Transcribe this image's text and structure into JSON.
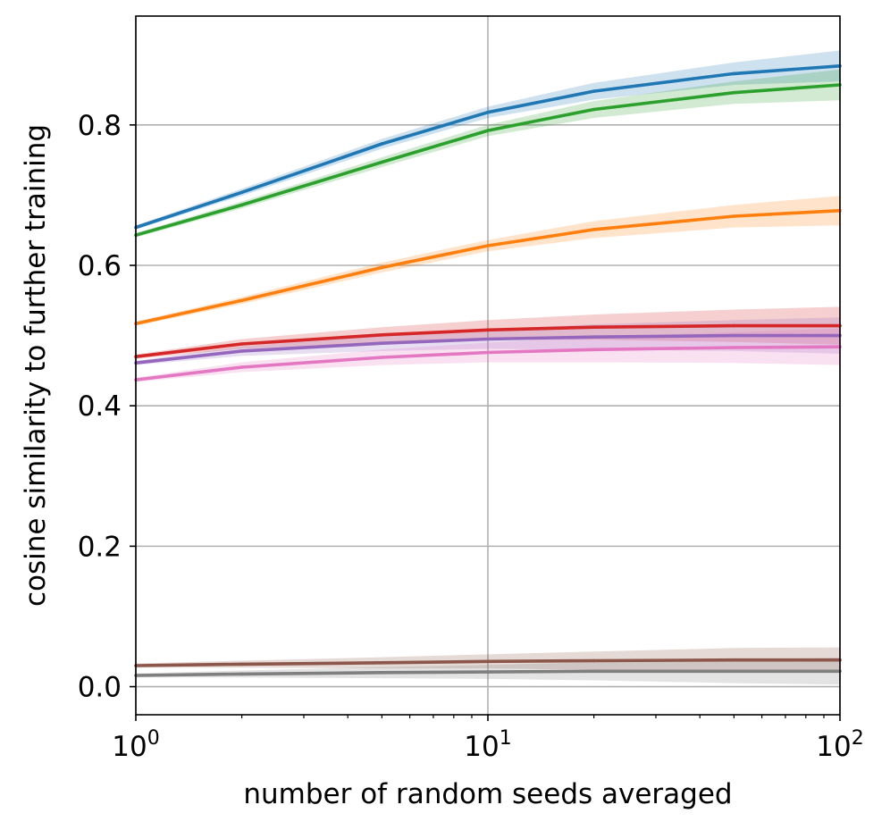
{
  "chart_data": {
    "type": "line",
    "title": "",
    "xlabel": "number of random seeds averaged",
    "ylabel": "cosine similarity to further training",
    "xscale": "log",
    "xlim": [
      1,
      100
    ],
    "ylim": [
      -0.04,
      0.955
    ],
    "xticks": [
      {
        "value": 1,
        "base": "10",
        "exp": "0"
      },
      {
        "value": 10,
        "base": "10",
        "exp": "1"
      },
      {
        "value": 100,
        "base": "10",
        "exp": "2"
      }
    ],
    "yticks": [
      {
        "value": 0.0,
        "label": "0.0"
      },
      {
        "value": 0.2,
        "label": "0.2"
      },
      {
        "value": 0.4,
        "label": "0.4"
      },
      {
        "value": 0.6,
        "label": "0.6"
      },
      {
        "value": 0.8,
        "label": "0.8"
      }
    ],
    "grid": true,
    "x": [
      1,
      2,
      5,
      10,
      20,
      50,
      100
    ],
    "series": [
      {
        "name": "blue",
        "color": "#1f77b4",
        "values": [
          0.654,
          0.704,
          0.773,
          0.818,
          0.848,
          0.873,
          0.884
        ],
        "lower": [
          0.651,
          0.699,
          0.766,
          0.81,
          0.836,
          0.857,
          0.862
        ],
        "upper": [
          0.657,
          0.709,
          0.78,
          0.826,
          0.86,
          0.889,
          0.906
        ]
      },
      {
        "name": "green",
        "color": "#2ca02c",
        "values": [
          0.643,
          0.686,
          0.747,
          0.792,
          0.822,
          0.846,
          0.857
        ],
        "lower": [
          0.64,
          0.681,
          0.74,
          0.784,
          0.81,
          0.83,
          0.835
        ],
        "upper": [
          0.646,
          0.691,
          0.754,
          0.8,
          0.834,
          0.862,
          0.879
        ]
      },
      {
        "name": "orange",
        "color": "#ff7f0e",
        "values": [
          0.517,
          0.55,
          0.597,
          0.628,
          0.651,
          0.67,
          0.678
        ],
        "lower": [
          0.514,
          0.545,
          0.59,
          0.62,
          0.639,
          0.654,
          0.657
        ],
        "upper": [
          0.52,
          0.555,
          0.604,
          0.636,
          0.663,
          0.686,
          0.699
        ]
      },
      {
        "name": "red",
        "color": "#d62728",
        "values": [
          0.47,
          0.488,
          0.501,
          0.508,
          0.512,
          0.514,
          0.514
        ],
        "lower": [
          0.467,
          0.481,
          0.49,
          0.494,
          0.494,
          0.491,
          0.487
        ],
        "upper": [
          0.473,
          0.495,
          0.512,
          0.522,
          0.53,
          0.537,
          0.541
        ]
      },
      {
        "name": "purple",
        "color": "#9467bd",
        "values": [
          0.461,
          0.478,
          0.489,
          0.495,
          0.498,
          0.5,
          0.5
        ],
        "lower": [
          0.458,
          0.471,
          0.478,
          0.481,
          0.48,
          0.478,
          0.474
        ],
        "upper": [
          0.464,
          0.485,
          0.5,
          0.509,
          0.516,
          0.522,
          0.526
        ]
      },
      {
        "name": "pink",
        "color": "#e377c2",
        "values": [
          0.437,
          0.455,
          0.469,
          0.476,
          0.48,
          0.483,
          0.484
        ],
        "lower": [
          0.434,
          0.448,
          0.458,
          0.462,
          0.462,
          0.461,
          0.458
        ],
        "upper": [
          0.44,
          0.462,
          0.48,
          0.49,
          0.498,
          0.505,
          0.51
        ]
      },
      {
        "name": "brown",
        "color": "#8c564b",
        "values": [
          0.03,
          0.032,
          0.034,
          0.036,
          0.037,
          0.038,
          0.038
        ],
        "lower": [
          0.027,
          0.027,
          0.026,
          0.026,
          0.024,
          0.021,
          0.02
        ],
        "upper": [
          0.033,
          0.037,
          0.042,
          0.046,
          0.05,
          0.055,
          0.056
        ]
      },
      {
        "name": "gray",
        "color": "#7f7f7f",
        "values": [
          0.016,
          0.018,
          0.02,
          0.021,
          0.022,
          0.022,
          0.022
        ],
        "lower": [
          0.013,
          0.013,
          0.012,
          0.011,
          0.009,
          0.005,
          0.003
        ],
        "upper": [
          0.019,
          0.023,
          0.028,
          0.031,
          0.035,
          0.039,
          0.041
        ]
      }
    ]
  }
}
